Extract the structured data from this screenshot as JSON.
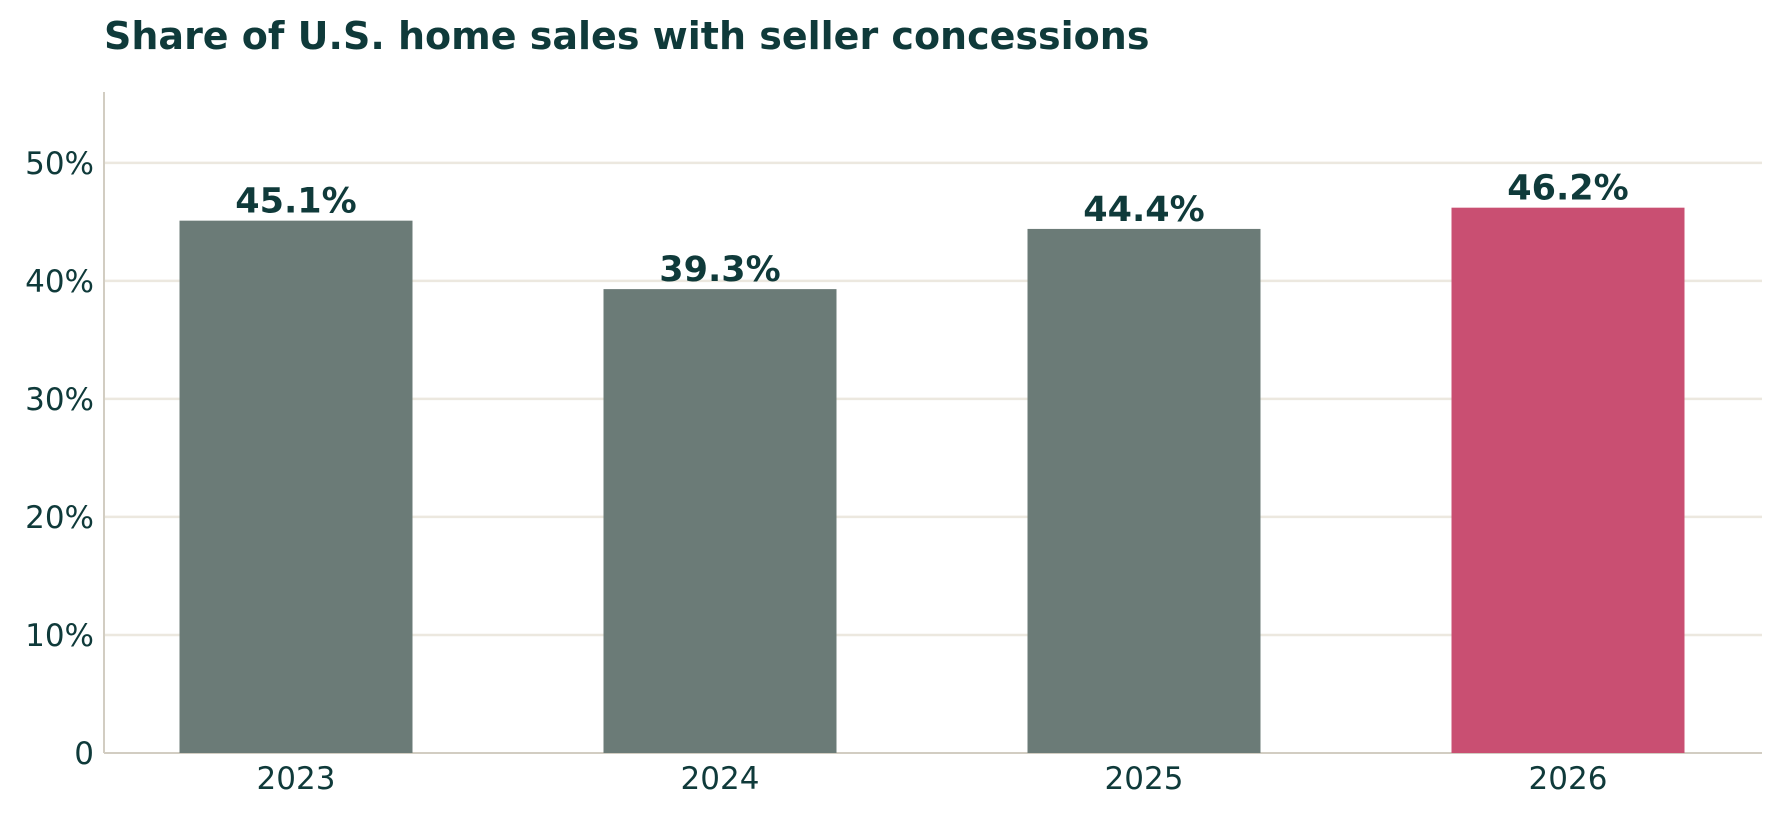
{
  "chart_data": {
    "type": "bar",
    "title": "Share of U.S. home sales with seller concessions",
    "xlabel": "",
    "ylabel": "",
    "categories": [
      "2023",
      "2024",
      "2025",
      "2026"
    ],
    "values": [
      45.1,
      39.3,
      44.4,
      46.2
    ],
    "data_labels": [
      "45.1%",
      "39.3%",
      "44.4%",
      "46.2%"
    ],
    "ylim": [
      0,
      56
    ],
    "yticks": [
      0,
      10,
      20,
      30,
      40,
      50
    ],
    "ytick_labels": [
      "0",
      "10%",
      "20%",
      "30%",
      "40%",
      "50%"
    ],
    "grid": true,
    "legend": "none",
    "highlight_index": 3,
    "colors": {
      "bar": "#6b7b77",
      "highlight": "#c94f72",
      "text": "#0f3a3a",
      "grid": "#ece8df",
      "axis": "#d2cdc2"
    }
  }
}
